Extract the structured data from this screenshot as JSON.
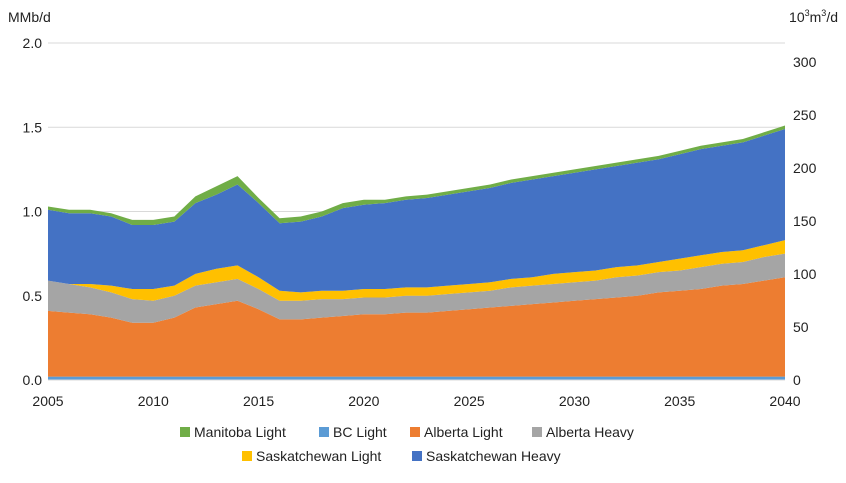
{
  "chart_data": {
    "type": "area",
    "stacked": true,
    "x": [
      2005,
      2006,
      2007,
      2008,
      2009,
      2010,
      2011,
      2012,
      2013,
      2014,
      2015,
      2016,
      2017,
      2018,
      2019,
      2020,
      2021,
      2022,
      2023,
      2024,
      2025,
      2026,
      2027,
      2028,
      2029,
      2030,
      2031,
      2032,
      2033,
      2034,
      2035,
      2036,
      2037,
      2038,
      2039,
      2040
    ],
    "xlim": [
      2005,
      2040
    ],
    "xticks": [
      "2005",
      "2010",
      "2015",
      "2020",
      "2025",
      "2030",
      "2035",
      "2040"
    ],
    "ylabel_left": "MMb/d",
    "ylabel_right": "10³m³/d",
    "ylim_left": [
      0,
      2.0
    ],
    "ylim_right": [
      0,
      318
    ],
    "yticks_left": [
      "0.0",
      "0.5",
      "1.0",
      "1.5",
      "2.0"
    ],
    "yticks_right": [
      "0",
      "50",
      "100",
      "150",
      "200",
      "250",
      "300"
    ],
    "grid": true,
    "legend_position": "bottom",
    "series": [
      {
        "name": "BC Light",
        "color": "#5B9BD5",
        "values": [
          0.02,
          0.02,
          0.02,
          0.02,
          0.02,
          0.02,
          0.02,
          0.02,
          0.02,
          0.02,
          0.02,
          0.02,
          0.02,
          0.02,
          0.02,
          0.02,
          0.02,
          0.02,
          0.02,
          0.02,
          0.02,
          0.02,
          0.02,
          0.02,
          0.02,
          0.02,
          0.02,
          0.02,
          0.02,
          0.02,
          0.02,
          0.02,
          0.02,
          0.02,
          0.02,
          0.02
        ]
      },
      {
        "name": "Alberta Light",
        "color": "#ED7D31",
        "values": [
          0.39,
          0.38,
          0.37,
          0.35,
          0.32,
          0.32,
          0.35,
          0.41,
          0.43,
          0.45,
          0.4,
          0.34,
          0.34,
          0.35,
          0.36,
          0.37,
          0.37,
          0.38,
          0.38,
          0.39,
          0.4,
          0.41,
          0.42,
          0.43,
          0.44,
          0.45,
          0.46,
          0.47,
          0.48,
          0.5,
          0.51,
          0.52,
          0.54,
          0.55,
          0.57,
          0.59
        ]
      },
      {
        "name": "Alberta Heavy",
        "color": "#A5A5A5",
        "values": [
          0.18,
          0.17,
          0.16,
          0.15,
          0.14,
          0.13,
          0.13,
          0.13,
          0.13,
          0.13,
          0.12,
          0.11,
          0.11,
          0.11,
          0.1,
          0.1,
          0.1,
          0.1,
          0.1,
          0.1,
          0.1,
          0.1,
          0.11,
          0.11,
          0.11,
          0.11,
          0.11,
          0.12,
          0.12,
          0.12,
          0.12,
          0.13,
          0.13,
          0.13,
          0.14,
          0.14
        ]
      },
      {
        "name": "Saskatchewan Light",
        "color": "#FFC000",
        "values": [
          0.0,
          0.0,
          0.02,
          0.04,
          0.06,
          0.07,
          0.06,
          0.07,
          0.08,
          0.08,
          0.07,
          0.06,
          0.05,
          0.05,
          0.05,
          0.05,
          0.05,
          0.05,
          0.05,
          0.05,
          0.05,
          0.05,
          0.05,
          0.05,
          0.06,
          0.06,
          0.06,
          0.06,
          0.06,
          0.06,
          0.07,
          0.07,
          0.07,
          0.07,
          0.07,
          0.08
        ]
      },
      {
        "name": "Saskatchewan Heavy",
        "color": "#4472C4",
        "values": [
          0.42,
          0.42,
          0.42,
          0.41,
          0.38,
          0.38,
          0.38,
          0.42,
          0.44,
          0.48,
          0.44,
          0.4,
          0.42,
          0.44,
          0.49,
          0.5,
          0.51,
          0.52,
          0.53,
          0.54,
          0.55,
          0.56,
          0.57,
          0.58,
          0.58,
          0.59,
          0.6,
          0.6,
          0.61,
          0.61,
          0.62,
          0.63,
          0.63,
          0.64,
          0.65,
          0.66
        ]
      },
      {
        "name": "Manitoba Light",
        "color": "#70AD47",
        "values": [
          0.02,
          0.02,
          0.02,
          0.02,
          0.03,
          0.03,
          0.03,
          0.04,
          0.05,
          0.05,
          0.03,
          0.03,
          0.03,
          0.03,
          0.03,
          0.03,
          0.02,
          0.02,
          0.02,
          0.02,
          0.02,
          0.02,
          0.02,
          0.02,
          0.02,
          0.02,
          0.02,
          0.02,
          0.02,
          0.02,
          0.02,
          0.02,
          0.02,
          0.02,
          0.02,
          0.02
        ]
      }
    ],
    "legend": {
      "row1": [
        "Manitoba Light",
        "BC Light",
        "Alberta Light",
        "Alberta Heavy"
      ],
      "row2": [
        "Saskatchewan Light",
        "Saskatchewan Heavy"
      ]
    }
  }
}
